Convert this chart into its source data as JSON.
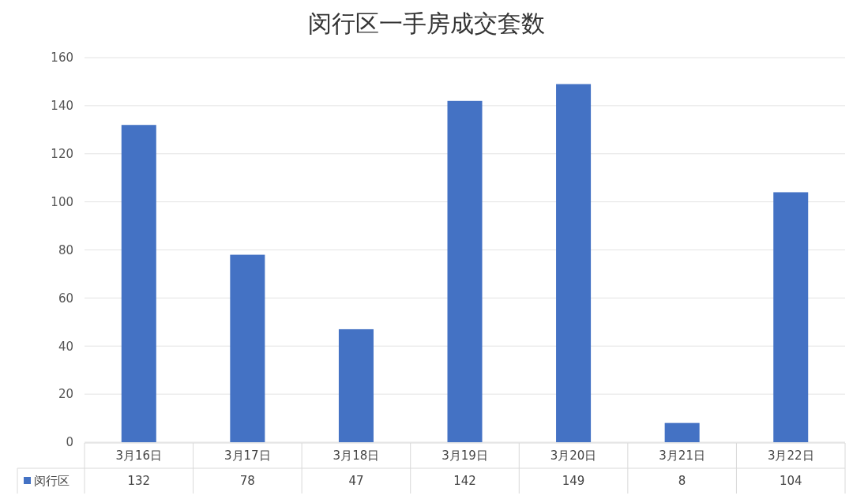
{
  "chart_data": {
    "type": "bar",
    "title": "闵行区一手房成交套数",
    "categories": [
      "3月16日",
      "3月17日",
      "3月18日",
      "3月19日",
      "3月20日",
      "3月21日",
      "3月22日"
    ],
    "series": [
      {
        "name": "闵行区",
        "color": "#4472c4",
        "values": [
          132,
          78,
          47,
          142,
          149,
          8,
          104
        ]
      }
    ],
    "ylim": [
      0,
      160
    ],
    "yticks": [
      0,
      20,
      40,
      60,
      80,
      100,
      120,
      140,
      160
    ],
    "grid": "y",
    "legend": "bottom",
    "data_labels": true
  }
}
